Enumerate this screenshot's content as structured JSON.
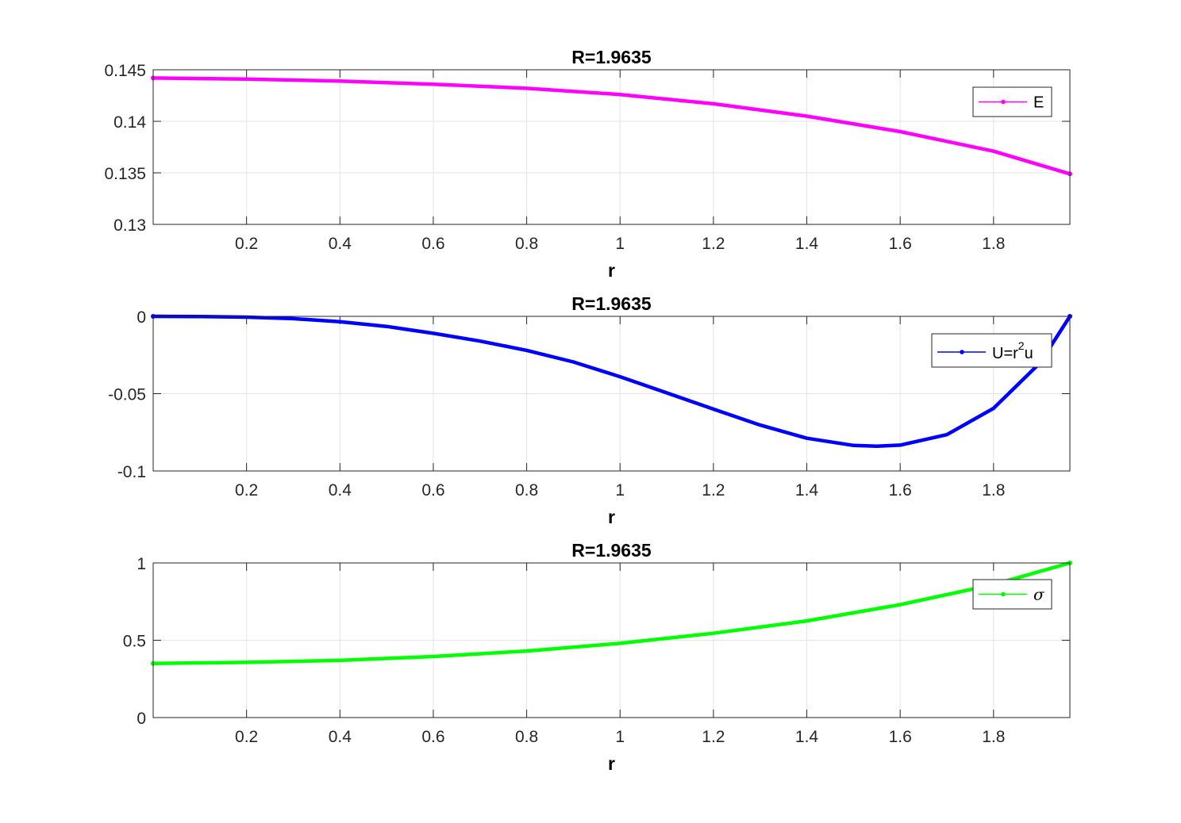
{
  "chart_data": [
    {
      "type": "line",
      "title": "R=1.9635",
      "xlabel": "r",
      "ylabel": "",
      "xlim": [
        0,
        1.9635
      ],
      "ylim": [
        0.13,
        0.145
      ],
      "xticks": [
        "0.2",
        "0.4",
        "0.6",
        "0.8",
        "1",
        "1.2",
        "1.4",
        "1.6",
        "1.8"
      ],
      "yticks": [
        "0.13",
        "0.135",
        "0.14",
        "0.145"
      ],
      "grid": true,
      "legend_position": "top-right",
      "series": [
        {
          "name": "E",
          "color": "#ff00ff",
          "x": [
            0,
            0.2,
            0.4,
            0.6,
            0.8,
            1.0,
            1.2,
            1.4,
            1.6,
            1.8,
            1.9635
          ],
          "y": [
            0.1442,
            0.1441,
            0.1439,
            0.1436,
            0.1432,
            0.1426,
            0.1417,
            0.1405,
            0.139,
            0.1371,
            0.1349
          ]
        }
      ]
    },
    {
      "type": "line",
      "title": "R=1.9635",
      "xlabel": "r",
      "ylabel": "",
      "xlim": [
        0,
        1.9635
      ],
      "ylim": [
        -0.1,
        0
      ],
      "xticks": [
        "0.2",
        "0.4",
        "0.6",
        "0.8",
        "1",
        "1.2",
        "1.4",
        "1.6",
        "1.8"
      ],
      "yticks": [
        "-0.1",
        "-0.05",
        "0"
      ],
      "grid": true,
      "legend_position": "top-right",
      "series": [
        {
          "name": "U=r2u",
          "name_base": "U=r",
          "name_sup": "2",
          "name_tail": "u",
          "color": "#0000ff",
          "x": [
            0,
            0.1,
            0.2,
            0.3,
            0.4,
            0.5,
            0.6,
            0.7,
            0.8,
            0.9,
            1.0,
            1.1,
            1.2,
            1.3,
            1.4,
            1.5,
            1.55,
            1.6,
            1.7,
            1.8,
            1.9,
            1.9635
          ],
          "y": [
            0,
            -0.0001,
            -0.0005,
            -0.0015,
            -0.0035,
            -0.0065,
            -0.011,
            -0.016,
            -0.022,
            -0.0295,
            -0.039,
            -0.0495,
            -0.06,
            -0.0703,
            -0.0788,
            -0.0835,
            -0.084,
            -0.0833,
            -0.0765,
            -0.0595,
            -0.03,
            0
          ]
        }
      ]
    },
    {
      "type": "line",
      "title": "R=1.9635",
      "xlabel": "r",
      "ylabel": "",
      "xlim": [
        0,
        1.9635
      ],
      "ylim": [
        0,
        1
      ],
      "xticks": [
        "0.2",
        "0.4",
        "0.6",
        "0.8",
        "1",
        "1.2",
        "1.4",
        "1.6",
        "1.8"
      ],
      "yticks": [
        "0",
        "0.5",
        "1"
      ],
      "grid": true,
      "legend_position": "top-right",
      "series": [
        {
          "name": "σ",
          "color": "#00ff00",
          "x": [
            0,
            0.2,
            0.4,
            0.6,
            0.8,
            1.0,
            1.2,
            1.4,
            1.6,
            1.8,
            1.9635
          ],
          "y": [
            0.35,
            0.357,
            0.37,
            0.395,
            0.43,
            0.48,
            0.545,
            0.625,
            0.73,
            0.86,
            1.0
          ]
        }
      ]
    }
  ]
}
